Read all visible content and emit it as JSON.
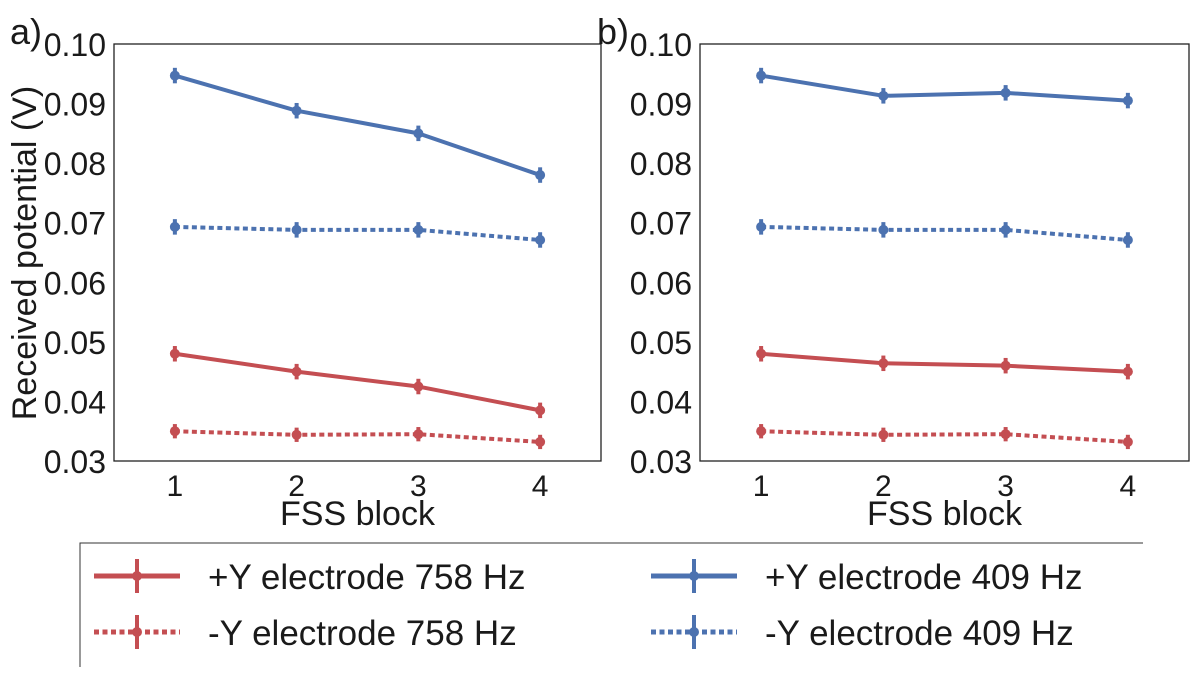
{
  "colors": {
    "red": "#c44e52",
    "blue": "#4c72b0",
    "axis": "#222222"
  },
  "shared": {
    "ylabel": "Received potential (V)"
  },
  "legend": {
    "items": [
      {
        "label": "+Y electrode 758 Hz",
        "color": "#c44e52",
        "style": "solid"
      },
      {
        "label": "+Y electrode 409 Hz",
        "color": "#4c72b0",
        "style": "solid"
      },
      {
        "label": "-Y electrode 758 Hz",
        "color": "#c44e52",
        "style": "dotted"
      },
      {
        "label": "-Y electrode 409 Hz",
        "color": "#4c72b0",
        "style": "dotted"
      }
    ]
  },
  "chart_data": [
    {
      "type": "line",
      "panel_label": "a)",
      "xlabel": "FSS block",
      "x": [
        1,
        2,
        3,
        4
      ],
      "xticks": [
        "1",
        "2",
        "3",
        "4"
      ],
      "xlim": [
        0.5,
        4.5
      ],
      "ylim": [
        0.03,
        0.1
      ],
      "yticks": [
        "0.03",
        "0.04",
        "0.05",
        "0.06",
        "0.07",
        "0.08",
        "0.09",
        "0.10"
      ],
      "series": [
        {
          "name": "+Y electrode 758 Hz",
          "color": "#c44e52",
          "style": "solid",
          "values": [
            0.048,
            0.045,
            0.0425,
            0.0385
          ],
          "error": [
            0.0013,
            0.0013,
            0.0013,
            0.0013
          ]
        },
        {
          "name": "-Y electrode 758 Hz",
          "color": "#c44e52",
          "style": "dotted",
          "values": [
            0.035,
            0.0344,
            0.0345,
            0.0332
          ],
          "error": [
            0.0012,
            0.0012,
            0.0012,
            0.0012
          ]
        },
        {
          "name": "+Y electrode 409 Hz",
          "color": "#4c72b0",
          "style": "solid",
          "values": [
            0.0947,
            0.0888,
            0.085,
            0.078
          ],
          "error": [
            0.0013,
            0.0013,
            0.0013,
            0.0013
          ]
        },
        {
          "name": "-Y electrode 409 Hz",
          "color": "#4c72b0",
          "style": "dotted",
          "values": [
            0.0693,
            0.0688,
            0.0688,
            0.0671
          ],
          "error": [
            0.0013,
            0.0013,
            0.0013,
            0.0013
          ]
        }
      ]
    },
    {
      "type": "line",
      "panel_label": "b)",
      "xlabel": "FSS block",
      "x": [
        1,
        2,
        3,
        4
      ],
      "xticks": [
        "1",
        "2",
        "3",
        "4"
      ],
      "xlim": [
        0.5,
        4.5
      ],
      "ylim": [
        0.03,
        0.1
      ],
      "yticks": [
        "0.03",
        "0.04",
        "0.05",
        "0.06",
        "0.07",
        "0.08",
        "0.09",
        "0.10"
      ],
      "series": [
        {
          "name": "+Y electrode 758 Hz",
          "color": "#c44e52",
          "style": "solid",
          "values": [
            0.048,
            0.0464,
            0.046,
            0.045
          ],
          "error": [
            0.0013,
            0.0013,
            0.0013,
            0.0013
          ]
        },
        {
          "name": "-Y electrode 758 Hz",
          "color": "#c44e52",
          "style": "dotted",
          "values": [
            0.035,
            0.0344,
            0.0345,
            0.0332
          ],
          "error": [
            0.0012,
            0.0012,
            0.0012,
            0.0012
          ]
        },
        {
          "name": "+Y electrode 409 Hz",
          "color": "#4c72b0",
          "style": "solid",
          "values": [
            0.0947,
            0.0913,
            0.0918,
            0.0905
          ],
          "error": [
            0.0013,
            0.0013,
            0.0013,
            0.0013
          ]
        },
        {
          "name": "-Y electrode 409 Hz",
          "color": "#4c72b0",
          "style": "dotted",
          "values": [
            0.0693,
            0.0688,
            0.0688,
            0.0671
          ],
          "error": [
            0.0013,
            0.0013,
            0.0013,
            0.0013
          ]
        }
      ]
    }
  ]
}
